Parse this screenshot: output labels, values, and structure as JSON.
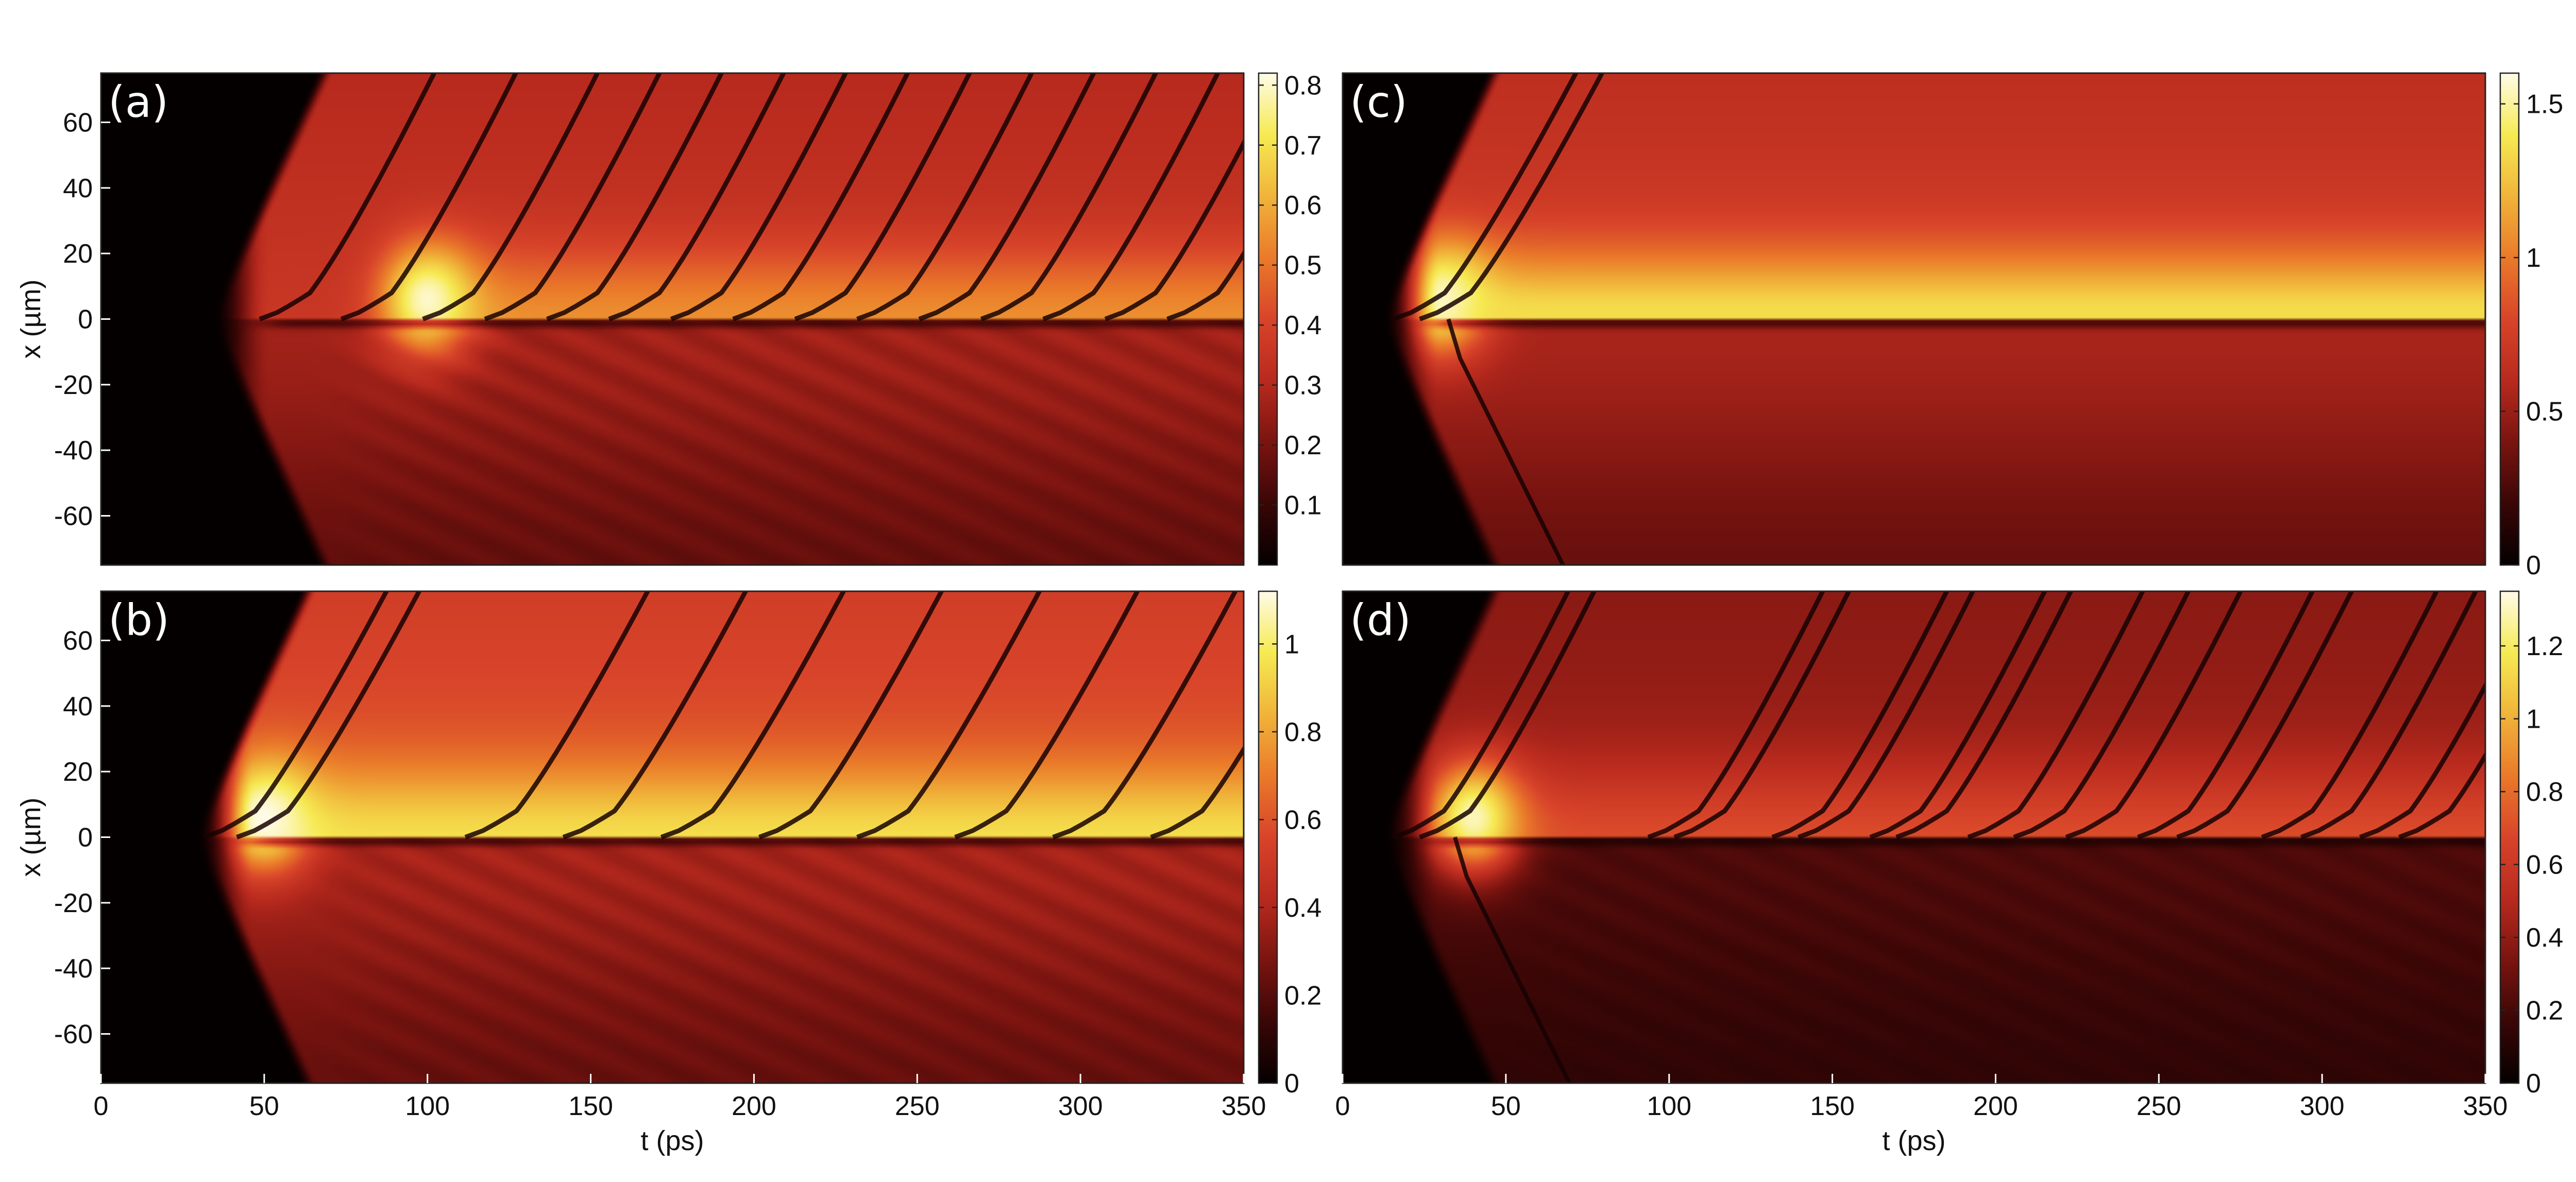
{
  "colormap": {
    "name": "hot",
    "stops": [
      "#050000",
      "#3a0606",
      "#7a1410",
      "#b82a1e",
      "#d8442a",
      "#ea7a2a",
      "#f0b43a",
      "#f6ea52",
      "#fffbe8"
    ]
  },
  "chart_data": [
    {
      "id": "a",
      "type": "heatmap",
      "panel_label": "(a)",
      "ylabel": "x (µm)",
      "xlabel": "",
      "xlim": [
        0,
        350
      ],
      "ylim": [
        -75,
        75
      ],
      "yticks": [
        -60,
        -40,
        -20,
        0,
        20,
        40,
        60
      ],
      "ytick_labels": [
        "-60",
        "-40",
        "-20",
        "0",
        "20",
        "40",
        "60"
      ],
      "xticks": [],
      "xtick_labels": [],
      "colorbar": {
        "range": [
          0,
          0.82
        ],
        "ticks": [
          0.1,
          0.2,
          0.3,
          0.4,
          0.5,
          0.6,
          0.7,
          0.8
        ],
        "tick_labels": [
          "0.1",
          "0.2",
          "0.3",
          "0.4",
          "0.5",
          "0.6",
          "0.7",
          "0.8"
        ]
      },
      "pattern": {
        "onset_t": 40,
        "first_spot_t": 100,
        "first_spot_value": 0.8,
        "background_upper": 0.36,
        "background_lower": 0.27,
        "background_max": 0.82,
        "dark_soliton_start_times": [
          55,
          80,
          105,
          124,
          143,
          162,
          181,
          200,
          219,
          238,
          257,
          276,
          295,
          314,
          333
        ],
        "soliton_slope_um_per_ps": 2.6,
        "upper_bright_value": 0.55,
        "lower_solitons": false,
        "lower_stripes": true
      }
    },
    {
      "id": "b",
      "type": "heatmap",
      "panel_label": "(b)",
      "ylabel": "x (µm)",
      "xlabel": "t (ps)",
      "xlim": [
        0,
        350
      ],
      "ylim": [
        -75,
        75
      ],
      "yticks": [
        -60,
        -40,
        -20,
        0,
        20,
        40,
        60
      ],
      "ytick_labels": [
        "-60",
        "-40",
        "-20",
        "0",
        "20",
        "40",
        "60"
      ],
      "xticks": [
        0,
        50,
        100,
        150,
        200,
        250,
        300,
        350
      ],
      "xtick_labels": [
        "0",
        "50",
        "100",
        "150",
        "200",
        "250",
        "300",
        "350"
      ],
      "colorbar": {
        "range": [
          0,
          1.12
        ],
        "ticks": [
          0,
          0.2,
          0.4,
          0.6,
          0.8,
          1
        ],
        "tick_labels": [
          "0",
          "0.2",
          "0.4",
          "0.6",
          "0.8",
          "1"
        ]
      },
      "pattern": {
        "onset_t": 35,
        "first_spot_t": 50,
        "first_spot_value": 1.12,
        "background_upper": 0.62,
        "background_lower": 0.38,
        "background_max": 1.12,
        "dark_soliton_start_times": [
          38,
          48,
          118,
          148,
          178,
          208,
          238,
          268,
          298,
          328
        ],
        "soliton_slope_um_per_ps": 2.4,
        "upper_bright_value": 0.95,
        "lower_solitons": false,
        "lower_stripes": true
      }
    },
    {
      "id": "c",
      "type": "heatmap",
      "panel_label": "(c)",
      "ylabel": "",
      "xlabel": "",
      "xlim": [
        0,
        350
      ],
      "ylim": [
        -75,
        75
      ],
      "yticks": [],
      "ytick_labels": [],
      "xticks": [],
      "xtick_labels": [],
      "colorbar": {
        "range": [
          0,
          1.6
        ],
        "ticks": [
          0,
          0.5,
          1,
          1.5
        ],
        "tick_labels": [
          "0",
          "0.5",
          "1",
          "1.5"
        ]
      },
      "pattern": {
        "onset_t": 18,
        "first_spot_t": 30,
        "first_spot_value": 1.55,
        "background_upper": 0.75,
        "background_lower": 0.55,
        "background_max": 1.6,
        "dark_soliton_start_times": [
          22,
          30
        ],
        "soliton_slope_um_per_ps": 2.4,
        "upper_bright_value": 1.35,
        "steady_stripe": true,
        "lower_solitons": true,
        "lower_soliton_start_times": [
          30
        ]
      }
    },
    {
      "id": "d",
      "type": "heatmap",
      "panel_label": "(d)",
      "ylabel": "",
      "xlabel": "t (ps)",
      "xlim": [
        0,
        350
      ],
      "ylim": [
        -75,
        75
      ],
      "yticks": [],
      "ytick_labels": [],
      "xticks": [
        0,
        50,
        100,
        150,
        200,
        250,
        300,
        350
      ],
      "xtick_labels": [
        "0",
        "50",
        "100",
        "150",
        "200",
        "250",
        "300",
        "350"
      ],
      "colorbar": {
        "range": [
          0,
          1.35
        ],
        "ticks": [
          0,
          0.2,
          0.4,
          0.6,
          0.8,
          1,
          1.2
        ],
        "tick_labels": [
          "0",
          "0.2",
          "0.4",
          "0.6",
          "0.8",
          "1",
          "1.2"
        ]
      },
      "pattern": {
        "onset_t": 18,
        "first_spot_t": 40,
        "first_spot_value": 1.3,
        "background_upper": 0.45,
        "background_lower": 0.22,
        "background_max": 1.35,
        "dark_soliton_start_times": [
          22,
          30,
          100,
          108,
          138,
          146,
          168,
          176,
          198,
          212,
          228,
          250,
          262,
          288,
          300,
          318,
          330
        ],
        "soliton_slope_um_per_ps": 2.6,
        "upper_bright_value": 0.7,
        "lower_solitons": true,
        "lower_soliton_start_times": [
          32
        ],
        "lower_stripes": true
      }
    }
  ]
}
